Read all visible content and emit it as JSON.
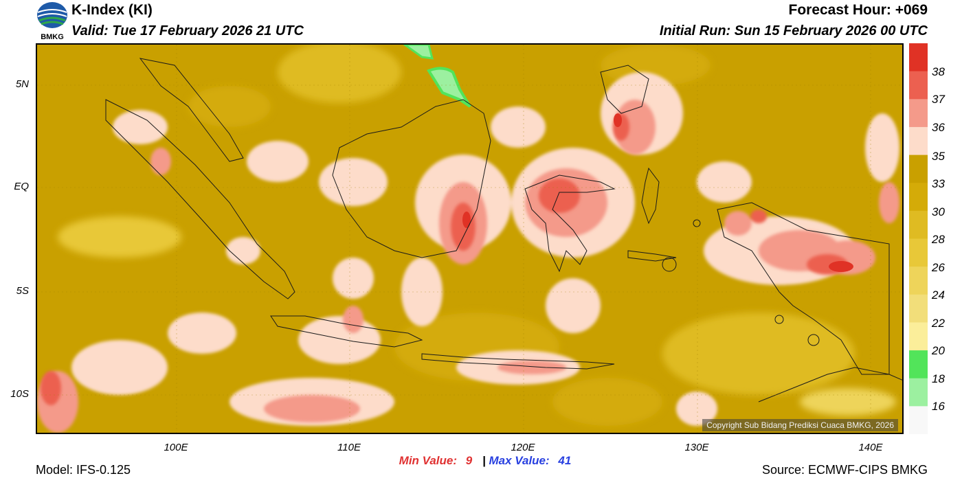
{
  "header": {
    "title": "K-Index (KI)",
    "valid": "Valid: Tue 17 February 2026 21 UTC",
    "forecast_hour": "Forecast Hour: +069",
    "initial_run": "Initial Run: Sun 15 February 2026 00 UTC",
    "logo_text": "BMKG"
  },
  "map": {
    "lat_labels": [
      "5N",
      "EQ",
      "5S",
      "10S"
    ],
    "lon_labels": [
      "100E",
      "110E",
      "120E",
      "130E",
      "140E"
    ],
    "copyright": "Copyright Sub Bidang Prediksi Cuaca BMKG, 2026",
    "base_color": "#c9a000"
  },
  "colorbar": {
    "labels": [
      "38",
      "37",
      "36",
      "35",
      "33",
      "30",
      "28",
      "26",
      "24",
      "22",
      "20",
      "18",
      "16"
    ],
    "colors": [
      "#e03225",
      "#ec6050",
      "#f49a8a",
      "#fddcca",
      "#c9a000",
      "#d4ab08",
      "#dfbb22",
      "#e8c838",
      "#eed45a",
      "#f2de7a",
      "#fbee9a",
      "#52e45a",
      "#9cf0a0",
      "#f8f8f8"
    ]
  },
  "stats": {
    "min_label": "Min Value:",
    "min_value": "9",
    "separator": "|",
    "max_label": "Max Value:",
    "max_value": "41",
    "min_color": "#e03232",
    "max_color": "#2840e0"
  },
  "footer": {
    "model": "Model: IFS-0.125",
    "source": "Source: ECMWF-CIPS BMKG"
  }
}
